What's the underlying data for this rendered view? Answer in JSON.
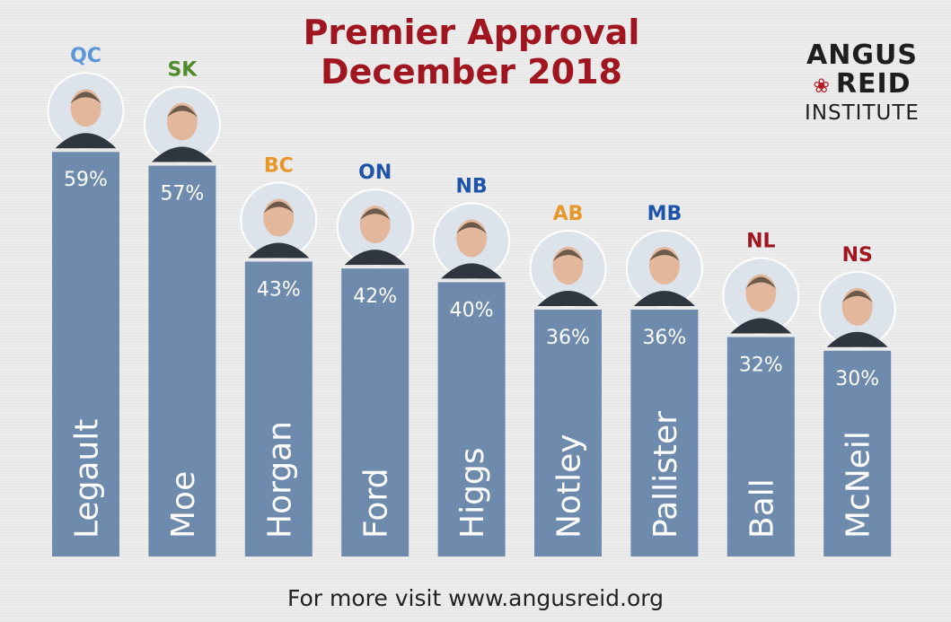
{
  "title_line1": "Premier Approval",
  "title_line2": "December 2018",
  "logo": {
    "line1": "ANGUS",
    "line2": "REID",
    "line3": "INSTITUTE"
  },
  "footer": "For more visit www.angusreid.org",
  "colors": {
    "bar": "#6e8aac",
    "title": "#a01620",
    "value_text": "#ffffff"
  },
  "chart_data": {
    "type": "bar",
    "categories": [
      "Legault",
      "Moe",
      "Horgan",
      "Ford",
      "Higgs",
      "Notley",
      "Pallister",
      "Ball",
      "McNeil"
    ],
    "values": [
      59,
      57,
      43,
      42,
      40,
      36,
      36,
      32,
      30
    ],
    "value_labels": [
      "59%",
      "57%",
      "43%",
      "42%",
      "40%",
      "36%",
      "36%",
      "32%",
      "30%"
    ],
    "provinces": [
      {
        "code": "QC",
        "color": "#5b97d6"
      },
      {
        "code": "SK",
        "color": "#4f8a2b"
      },
      {
        "code": "BC",
        "color": "#e7982b"
      },
      {
        "code": "ON",
        "color": "#1f54a8"
      },
      {
        "code": "NB",
        "color": "#1f54a8"
      },
      {
        "code": "AB",
        "color": "#e7982b"
      },
      {
        "code": "MB",
        "color": "#1f54a8"
      },
      {
        "code": "NL",
        "color": "#a01620"
      },
      {
        "code": "NS",
        "color": "#a01620"
      }
    ],
    "ylim": [
      0,
      60
    ]
  }
}
